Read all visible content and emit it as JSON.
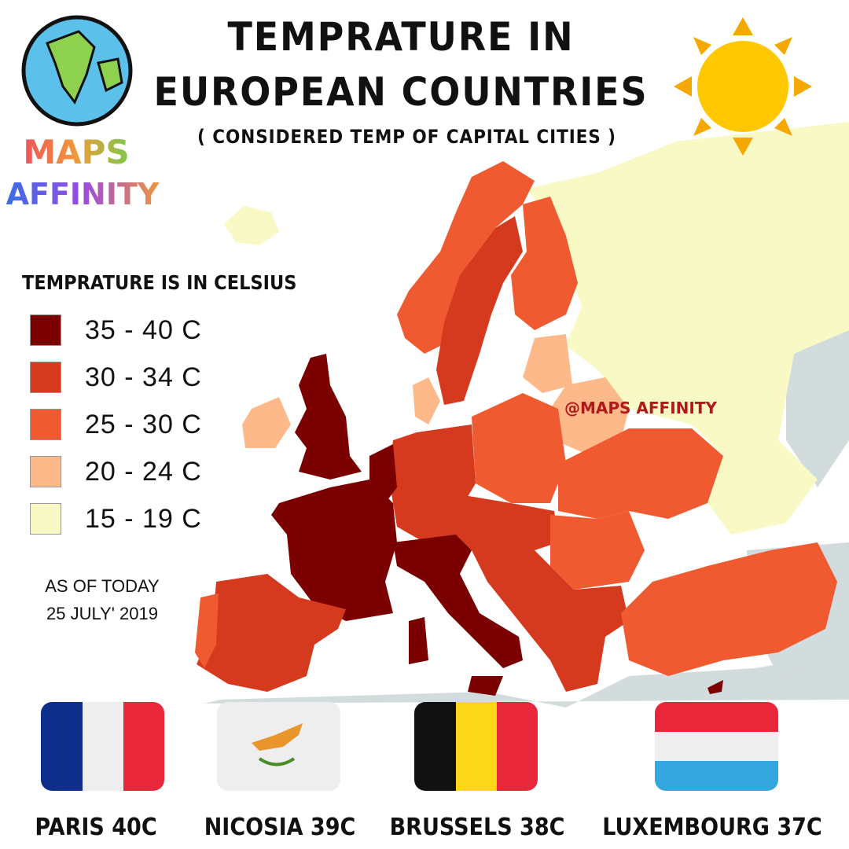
{
  "header": {
    "title_line1": "TEMPRATURE IN",
    "title_line2": "EUROPEAN COUNTRIES",
    "subtitle": "( CONSIDERED TEMP OF CAPITAL CITIES )"
  },
  "logo": {
    "line1": "MAPS",
    "line2": "AFFINITY"
  },
  "legend": {
    "title": "TEMPRATURE IS IN CELSIUS",
    "items": [
      {
        "label": "35 - 40 C",
        "color": "#7b0000"
      },
      {
        "label": "30 - 34 C",
        "color": "#d63a1e"
      },
      {
        "label": "25 - 30 C",
        "color": "#f05a30"
      },
      {
        "label": "20 - 24 C",
        "color": "#fdb98a"
      },
      {
        "label": "15 - 19 C",
        "color": "#f8f9c4"
      }
    ]
  },
  "date": {
    "line1": "AS OF TODAY",
    "line2": "25 JULY' 2019"
  },
  "watermark": "@MAPS AFFINITY",
  "cities": [
    "PARIS 40C",
    "NICOSIA 39C",
    "BRUSSELS 38C",
    "LUXEMBOURG 37C"
  ]
}
